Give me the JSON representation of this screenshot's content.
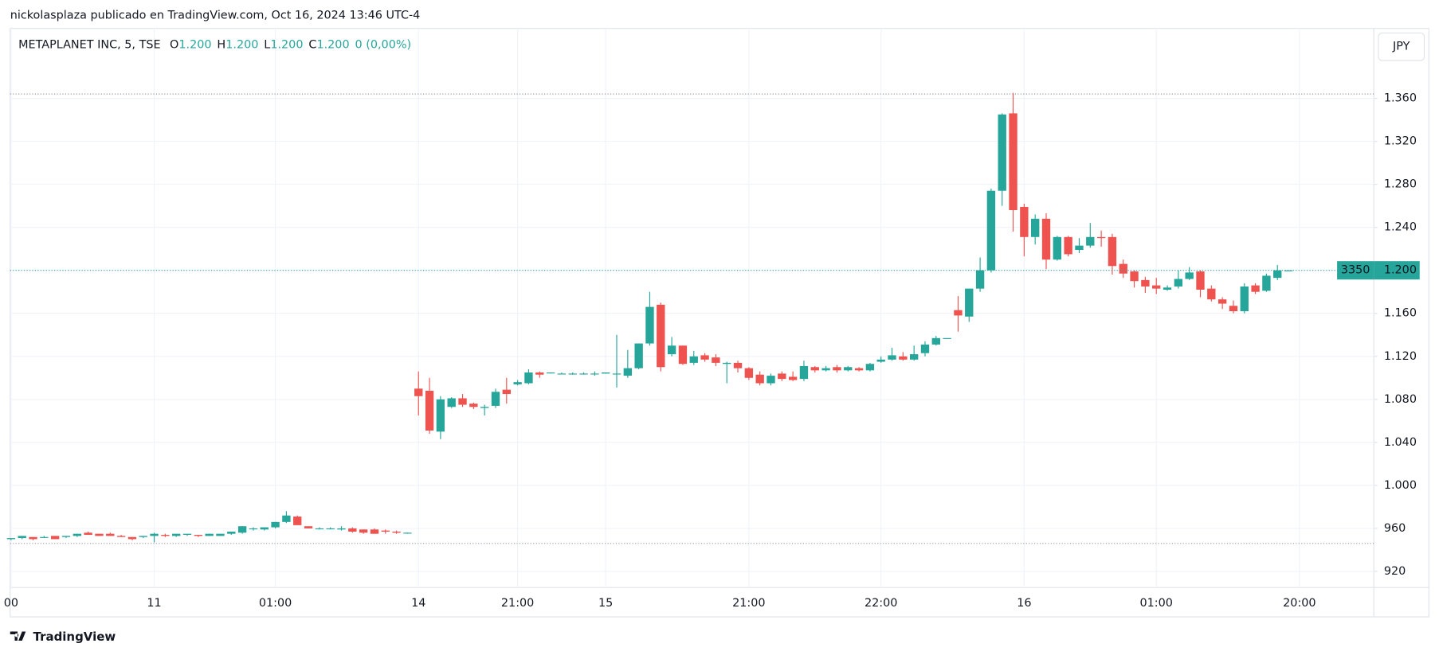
{
  "header": "nickolasplaza publicado en TradingView.com, Oct 16, 2024 13:46 UTC-4",
  "footer": "TradingView",
  "currency_button": "JPY",
  "chart_data": {
    "type": "candlestick",
    "symbol": "METAPLANET INC, 5, TSE",
    "ohlc_legend": [
      {
        "label": "O",
        "value": "1.200"
      },
      {
        "label": "H",
        "value": "1.200"
      },
      {
        "label": "L",
        "value": "1.200"
      },
      {
        "label": "C",
        "value": "1.200"
      }
    ],
    "change": "0 (0,00%)",
    "up_color": "#26a69a",
    "down_color": "#ef5350",
    "grid": true,
    "ylim": [
      905,
      1425
    ],
    "yticks": [
      {
        "value": 1360,
        "label": "1.360"
      },
      {
        "value": 1320,
        "label": "1.320"
      },
      {
        "value": 1280,
        "label": "1.280"
      },
      {
        "value": 1240,
        "label": "1.240"
      },
      {
        "value": 1200,
        "label": "1.200"
      },
      {
        "value": 1160,
        "label": "1.160"
      },
      {
        "value": 1120,
        "label": "1.120"
      },
      {
        "value": 1080,
        "label": "1.080"
      },
      {
        "value": 1040,
        "label": "1.040"
      },
      {
        "value": 1000,
        "label": "1.000"
      },
      960,
      920
    ],
    "last_price": {
      "value": 1200,
      "label": "1.200"
    },
    "badge_text": "3350",
    "range_lines": [
      1364,
      946
    ],
    "categories": [
      "00",
      null,
      null,
      null,
      null,
      null,
      null,
      null,
      null,
      null,
      null,
      null,
      null,
      "11",
      null,
      null,
      null,
      null,
      null,
      null,
      null,
      null,
      null,
      null,
      "01:00",
      null,
      null,
      null,
      null,
      null,
      null,
      null,
      null,
      null,
      null,
      null,
      null,
      "14",
      null,
      null,
      null,
      null,
      null,
      null,
      null,
      null,
      "21:00",
      null,
      null,
      null,
      null,
      null,
      null,
      null,
      "15",
      null,
      null,
      null,
      null,
      null,
      null,
      null,
      null,
      null,
      null,
      null,
      null,
      "21:00",
      null,
      null,
      null,
      null,
      null,
      null,
      null,
      null,
      null,
      null,
      null,
      "22:00",
      null,
      null,
      null,
      null,
      null,
      null,
      null,
      null,
      null,
      null,
      null,
      null,
      "16",
      null,
      null,
      null,
      null,
      null,
      null,
      null,
      null,
      null,
      null,
      null,
      "01:00",
      null,
      null,
      null,
      null,
      null,
      null,
      null,
      null,
      null,
      null,
      null,
      null,
      "20:00"
    ],
    "open": [
      950,
      951,
      952,
      952,
      953,
      952,
      953,
      956,
      955,
      955,
      953,
      952,
      952,
      953,
      954,
      953,
      954,
      954,
      953,
      953,
      955,
      956,
      960,
      959,
      961,
      966,
      971,
      962,
      960,
      960,
      959,
      960,
      959,
      959,
      958,
      957,
      956,
      1090,
      1088,
      1050,
      1073,
      1081,
      1076,
      1072,
      1074,
      1089,
      1094,
      1095,
      1105,
      1105,
      1104,
      1104,
      1104,
      1104,
      1104,
      1104,
      1102,
      1109,
      1132,
      1168,
      1122,
      1130,
      1114,
      1121,
      1119,
      1113,
      1114,
      1109,
      1103,
      1095,
      1104,
      1101,
      1099,
      1110,
      1107,
      1110,
      1107,
      1109,
      1107,
      1115,
      1117,
      1120,
      1117,
      1123,
      1131,
      1137,
      1163,
      1157,
      1183,
      1200,
      1274,
      1346,
      1259,
      1231,
      1248,
      1210,
      1231,
      1219,
      1223,
      1231,
      1231,
      1206,
      1199,
      1191,
      1186,
      1182,
      1185,
      1192,
      1199,
      1183,
      1173,
      1167,
      1162,
      1186,
      1181,
      1193,
      1200,
      null
    ],
    "high": [
      951,
      953,
      952,
      953,
      953,
      953,
      955,
      957,
      955,
      956,
      954,
      952,
      953,
      956,
      955,
      955,
      955,
      954,
      955,
      955,
      957,
      962,
      961,
      961,
      966,
      976,
      972,
      962,
      961,
      961,
      962,
      961,
      959,
      960,
      959,
      958,
      956,
      1106,
      1100,
      1083,
      1082,
      1085,
      1077,
      1075,
      1090,
      1100,
      1098,
      1108,
      1106,
      1105,
      1105,
      1105,
      1105,
      1106,
      1105,
      1140,
      1126,
      1132,
      1180,
      1170,
      1138,
      1130,
      1125,
      1123,
      1122,
      1115,
      1116,
      1110,
      1106,
      1104,
      1106,
      1106,
      1116,
      1111,
      1111,
      1112,
      1111,
      1110,
      1114,
      1120,
      1128,
      1124,
      1130,
      1134,
      1139,
      1137,
      1176,
      1183,
      1212,
      1276,
      1346,
      1365,
      1262,
      1252,
      1253,
      1232,
      1232,
      1230,
      1244,
      1237,
      1234,
      1210,
      1200,
      1194,
      1193,
      1186,
      1200,
      1203,
      1200,
      1186,
      1175,
      1172,
      1188,
      1188,
      1197,
      1205,
      1200,
      null
    ],
    "low": [
      949,
      950,
      949,
      951,
      950,
      951,
      952,
      954,
      953,
      953,
      952,
      949,
      951,
      947,
      952,
      952,
      953,
      952,
      953,
      953,
      954,
      955,
      958,
      958,
      960,
      965,
      963,
      960,
      959,
      959,
      958,
      956,
      955,
      955,
      955,
      955,
      955,
      1065,
      1048,
      1043,
      1072,
      1073,
      1071,
      1065,
      1072,
      1076,
      1093,
      1094,
      1100,
      1104,
      1104,
      1103,
      1103,
      1102,
      1104,
      1091,
      1100,
      1108,
      1130,
      1106,
      1120,
      1112,
      1112,
      1115,
      1111,
      1095,
      1105,
      1098,
      1093,
      1093,
      1097,
      1097,
      1097,
      1105,
      1106,
      1105,
      1106,
      1106,
      1106,
      1114,
      1116,
      1116,
      1116,
      1120,
      1130,
      1137,
      1143,
      1152,
      1180,
      1198,
      1260,
      1236,
      1213,
      1224,
      1201,
      1209,
      1213,
      1216,
      1221,
      1222,
      1196,
      1193,
      1184,
      1179,
      1178,
      1181,
      1183,
      1191,
      1175,
      1171,
      1164,
      1160,
      1160,
      1178,
      1180,
      1191,
      1200,
      null
    ],
    "close": [
      951,
      953,
      950,
      952,
      950,
      953,
      955,
      954,
      953,
      953,
      952,
      950,
      953,
      955,
      953,
      955,
      955,
      953,
      955,
      955,
      957,
      962,
      960,
      961,
      966,
      972,
      963,
      960,
      960,
      960,
      960,
      957,
      956,
      955,
      957,
      956,
      956,
      1083,
      1051,
      1080,
      1081,
      1075,
      1073,
      1073,
      1087,
      1085,
      1096,
      1105,
      1103,
      1105,
      1104,
      1104,
      1104,
      1104,
      1105,
      1104,
      1109,
      1132,
      1166,
      1110,
      1130,
      1113,
      1120,
      1117,
      1114,
      1114,
      1109,
      1100,
      1095,
      1102,
      1099,
      1098,
      1111,
      1107,
      1109,
      1107,
      1110,
      1107,
      1113,
      1117,
      1121,
      1117,
      1122,
      1131,
      1137,
      1137,
      1158,
      1183,
      1200,
      1274,
      1345,
      1256,
      1231,
      1248,
      1210,
      1231,
      1215,
      1223,
      1231,
      1230,
      1204,
      1197,
      1190,
      1185,
      1183,
      1184,
      1192,
      1198,
      1182,
      1173,
      1169,
      1162,
      1185,
      1180,
      1195,
      1200,
      1200,
      null
    ]
  }
}
